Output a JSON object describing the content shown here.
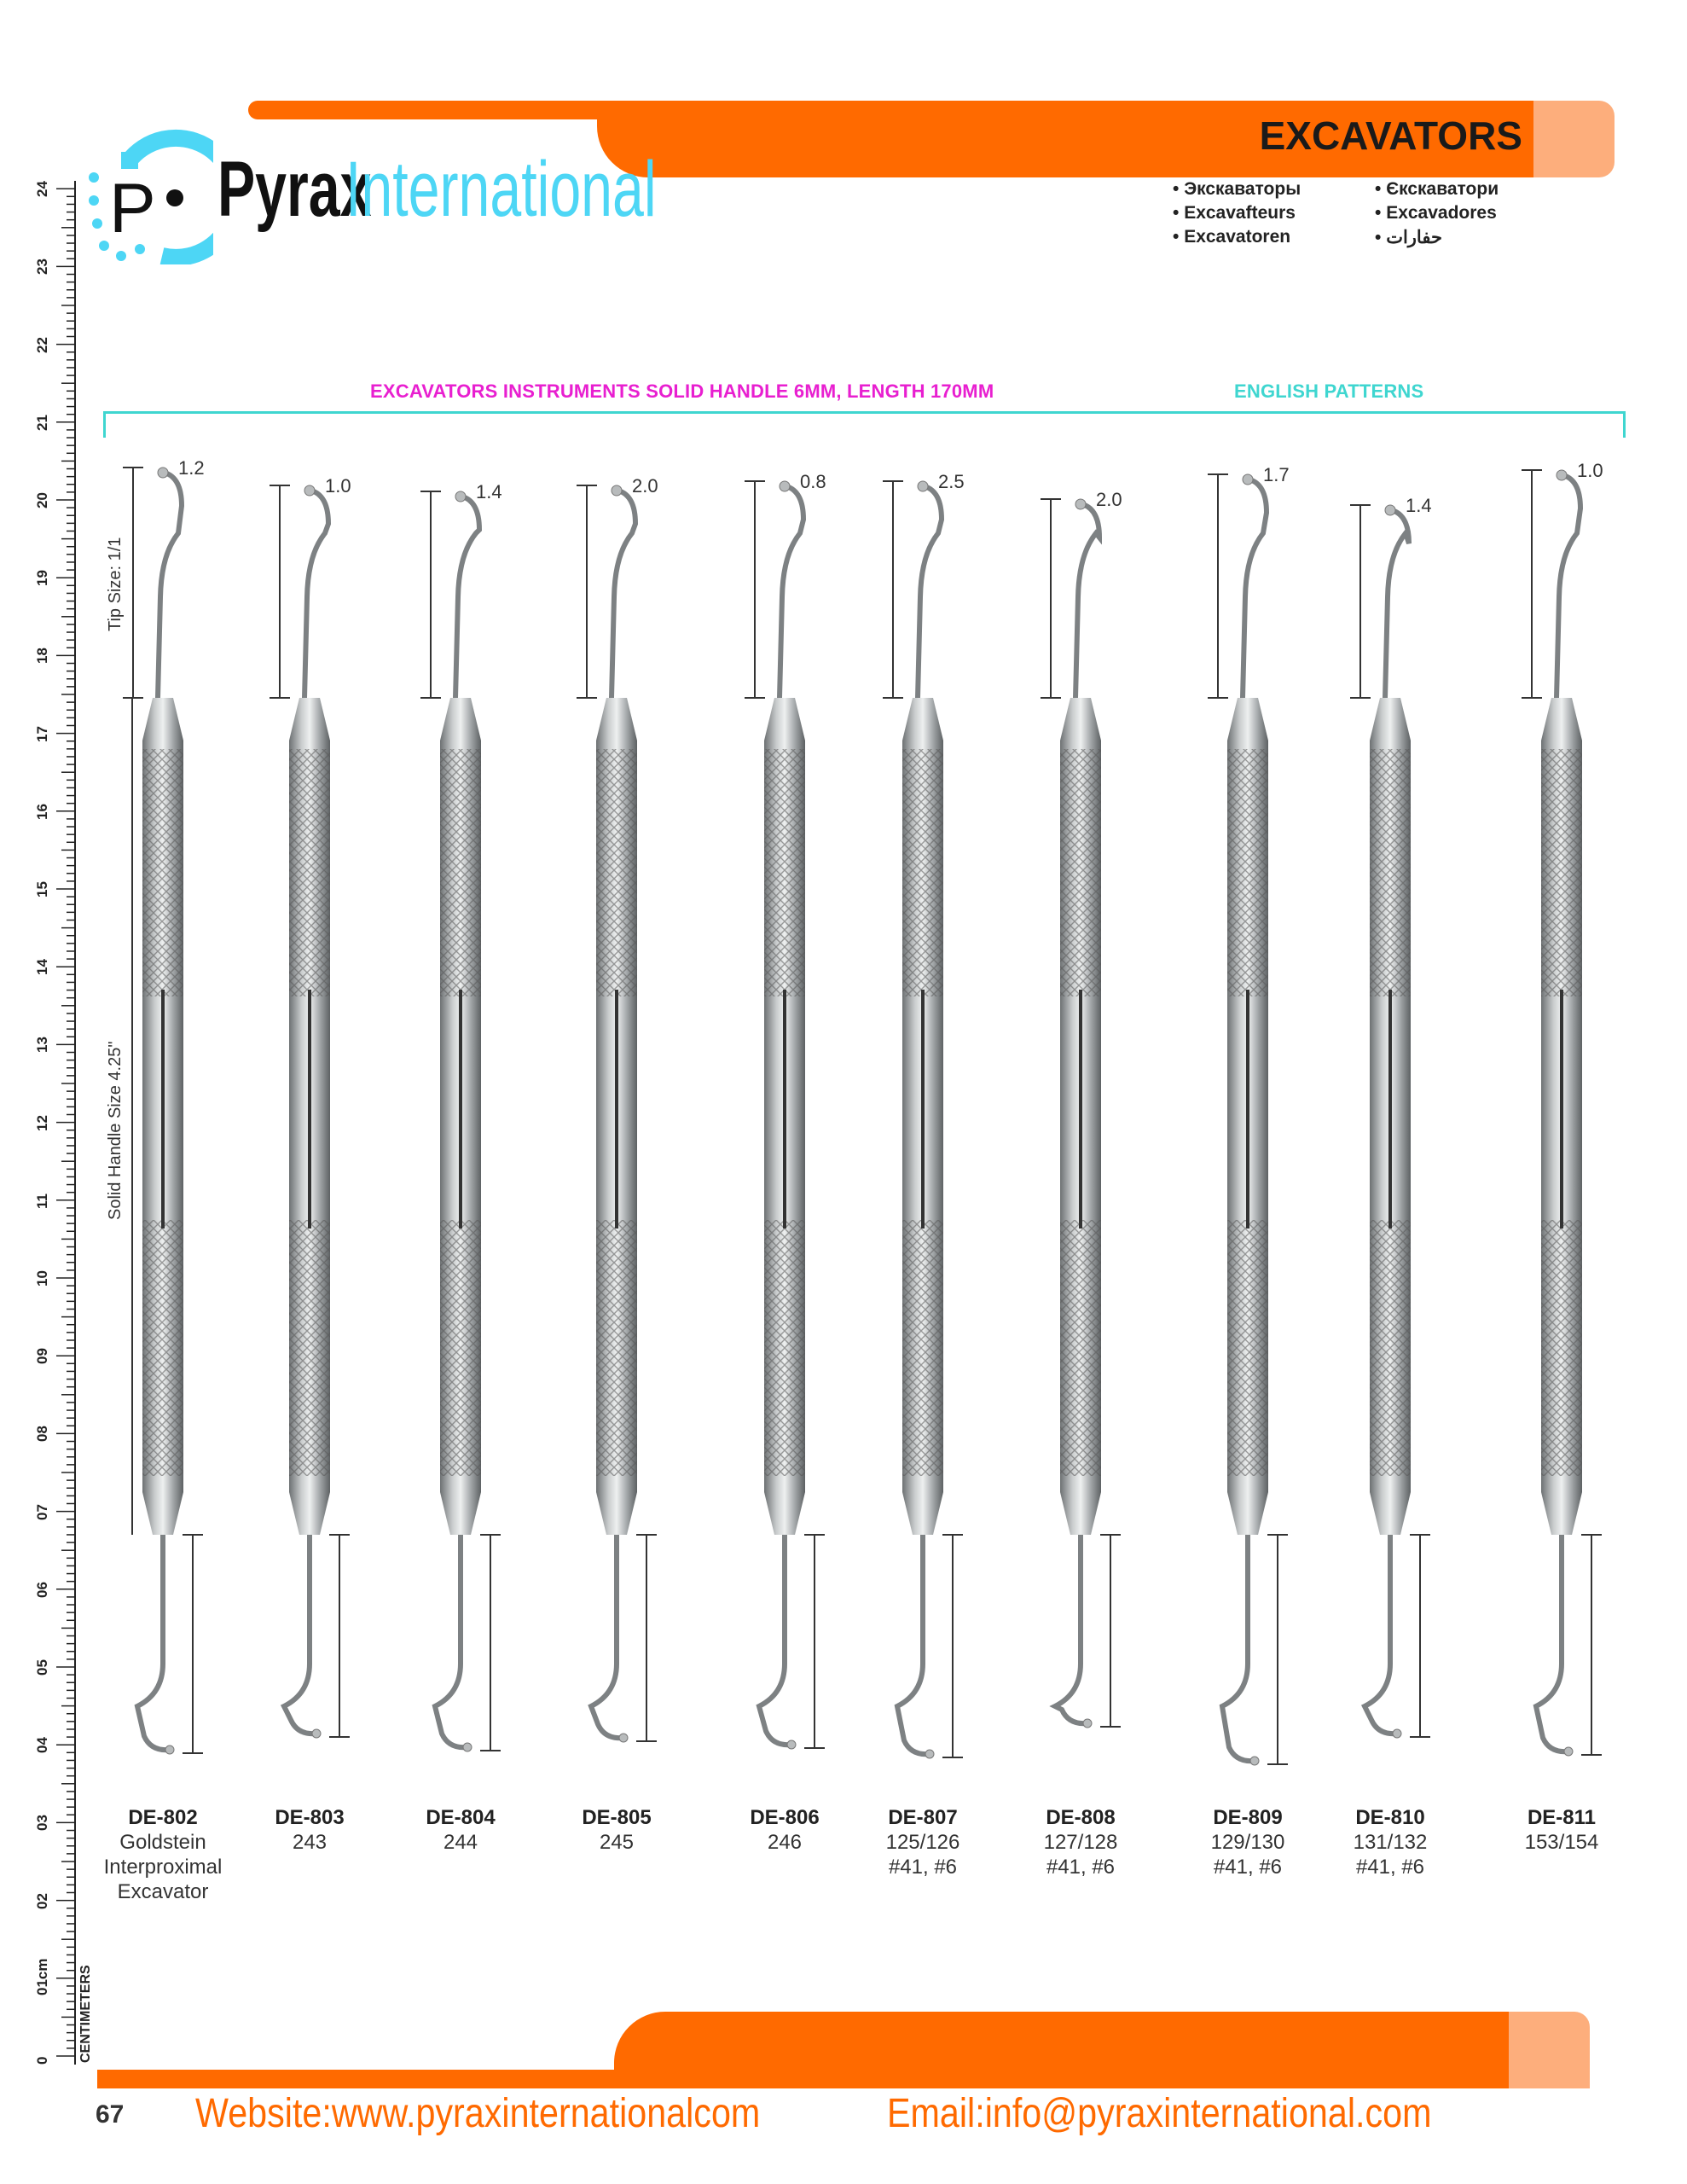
{
  "brand": {
    "name_part1": "Pyrax",
    "name_part2": "International",
    "logo_letters": "Pi",
    "primary_color": "#ff6a00",
    "accent_color": "#4dd6f5",
    "peach_color": "#fdae7c"
  },
  "header": {
    "title": "EXCAVATORS",
    "translations": [
      "Экскаваторы",
      "Excavafteurs",
      "Excavatoren",
      "Єкскаватори",
      "Excavadores",
      "حفارات"
    ]
  },
  "subtitle": {
    "main": "EXCAVATORS INSTRUMENTS SOLID HANDLE 6MM, LENGTH 170MM",
    "main_color": "#e81fd0",
    "pattern": "ENGLISH PATTERNS",
    "pattern_color": "#3fd6d0"
  },
  "dimension_labels": {
    "tip": "Tip Size: 1/1",
    "handle": "Solid Handle Size 4.25\""
  },
  "ruler": {
    "unit_label": "CENTIMETERS",
    "labels": [
      "0",
      "01cm",
      "02",
      "03",
      "04",
      "05",
      "06",
      "07",
      "08",
      "09",
      "10",
      "11",
      "12",
      "13",
      "14",
      "15",
      "16",
      "17",
      "18",
      "19",
      "20",
      "21",
      "22",
      "23",
      "24"
    ]
  },
  "instruments": [
    {
      "code": "DE-802",
      "lines": [
        "Goldstein",
        "Interproximal",
        "Excavator"
      ],
      "tip_size": "1.2"
    },
    {
      "code": "DE-803",
      "lines": [
        "243"
      ],
      "tip_size": "1.0"
    },
    {
      "code": "DE-804",
      "lines": [
        "244"
      ],
      "tip_size": "1.4"
    },
    {
      "code": "DE-805",
      "lines": [
        "245"
      ],
      "tip_size": "2.0"
    },
    {
      "code": "DE-806",
      "lines": [
        "246"
      ],
      "tip_size": "0.8"
    },
    {
      "code": "DE-807",
      "lines": [
        "125/126",
        "#41, #6"
      ],
      "tip_size": "2.5"
    },
    {
      "code": "DE-808",
      "lines": [
        "127/128",
        "#41, #6"
      ],
      "tip_size": "2.0"
    },
    {
      "code": "DE-809",
      "lines": [
        "129/130",
        "#41, #6"
      ],
      "tip_size": "1.7"
    },
    {
      "code": "DE-810",
      "lines": [
        "131/132",
        "#41, #6"
      ],
      "tip_size": "1.4"
    },
    {
      "code": "DE-811",
      "lines": [
        "153/154"
      ],
      "tip_size": "1.0"
    }
  ],
  "footer": {
    "page_number": "67",
    "website": "Website:www.pyraxinternationalcom",
    "email": "Email:info@pyraxinternational.com"
  }
}
